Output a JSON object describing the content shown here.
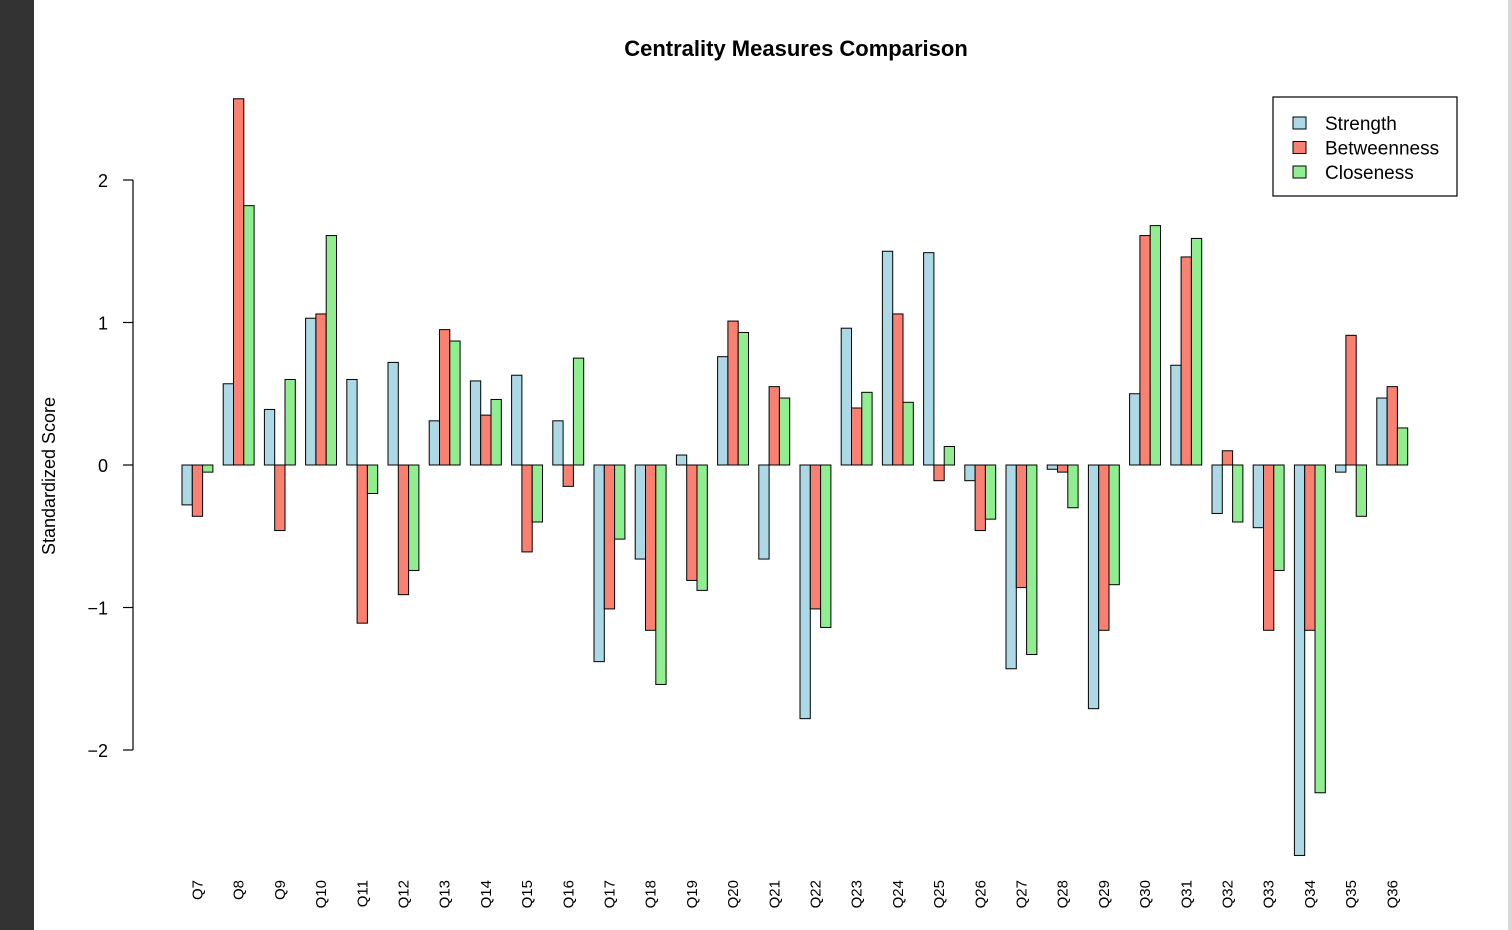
{
  "chart_data": {
    "type": "bar",
    "title": "Centrality Measures Comparison",
    "xlabel": "",
    "ylabel": "Standardized Score",
    "ylim": [
      -2.9,
      2.6
    ],
    "yticks": [
      -2,
      -1,
      0,
      1,
      2
    ],
    "ytick_labels": [
      "−2",
      "−1",
      "0",
      "1",
      "2"
    ],
    "legend_position": "top-right",
    "grid": false,
    "categories": [
      "Q7",
      "Q8",
      "Q9",
      "Q10",
      "Q11",
      "Q12",
      "Q13",
      "Q14",
      "Q15",
      "Q16",
      "Q17",
      "Q18",
      "Q19",
      "Q20",
      "Q21",
      "Q22",
      "Q23",
      "Q24",
      "Q25",
      "Q26",
      "Q27",
      "Q28",
      "Q29",
      "Q30",
      "Q31",
      "Q32",
      "Q33",
      "Q34",
      "Q35",
      "Q36"
    ],
    "series": [
      {
        "name": "Strength",
        "color": "#add8e6",
        "values": [
          -0.28,
          0.57,
          0.39,
          1.03,
          0.6,
          0.72,
          0.31,
          0.59,
          0.63,
          0.31,
          -1.38,
          -0.66,
          0.07,
          0.76,
          -0.66,
          -1.78,
          0.96,
          1.5,
          1.49,
          -0.11,
          -1.43,
          -0.03,
          -1.71,
          0.5,
          0.7,
          -0.34,
          -0.44,
          -2.74,
          -0.05,
          0.47
        ]
      },
      {
        "name": "Betweenness",
        "color": "#fa8072",
        "values": [
          -0.36,
          2.57,
          -0.46,
          1.06,
          -1.11,
          -0.91,
          0.95,
          0.35,
          -0.61,
          -0.15,
          -1.01,
          -1.16,
          -0.81,
          1.01,
          0.55,
          -1.01,
          0.4,
          1.06,
          -0.11,
          -0.46,
          -0.86,
          -0.05,
          -1.16,
          1.61,
          1.46,
          0.1,
          -1.16,
          -1.16,
          0.91,
          0.55
        ]
      },
      {
        "name": "Closeness",
        "color": "#90ee90",
        "values": [
          -0.05,
          1.82,
          0.6,
          1.61,
          -0.2,
          -0.74,
          0.87,
          0.46,
          -0.4,
          0.75,
          -0.52,
          -1.54,
          -0.88,
          0.93,
          0.47,
          -1.14,
          0.51,
          0.44,
          0.13,
          -0.38,
          -1.33,
          -0.3,
          -0.84,
          1.68,
          1.59,
          -0.4,
          -0.74,
          -2.3,
          -0.36,
          0.26
        ]
      }
    ]
  }
}
